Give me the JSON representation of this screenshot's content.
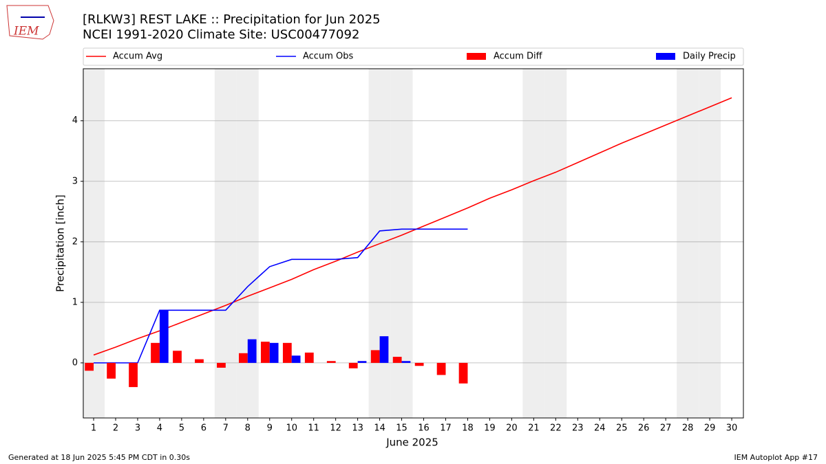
{
  "chart_data": {
    "type": "bar-line",
    "title": "[RLKW3] REST LAKE :: Precipitation for Jun 2025",
    "subtitle": "NCEI 1991-2020 Climate Site: USC00477092",
    "xlabel": "June 2025",
    "ylabel": "Precipitation [inch]",
    "logo_text": "IEM",
    "footer_left": "Generated at 18 Jun 2025 5:45 PM CDT in 0.30s",
    "footer_right": "IEM Autoplot App #17",
    "x": [
      1,
      2,
      3,
      4,
      5,
      6,
      7,
      8,
      9,
      10,
      11,
      12,
      13,
      14,
      15,
      16,
      17,
      18,
      19,
      20,
      21,
      22,
      23,
      24,
      25,
      26,
      27,
      28,
      29,
      30
    ],
    "shaded_days": [
      1,
      7,
      8,
      14,
      15,
      21,
      22,
      28,
      29
    ],
    "xlim": [
      0.53,
      30.53
    ],
    "ylim": [
      -0.91,
      4.86
    ],
    "yticks": [
      0,
      1,
      2,
      3,
      4
    ],
    "grid": true,
    "series": [
      {
        "name": "Accum Avg",
        "kind": "line",
        "color": "#ff0000",
        "values": [
          0.13,
          0.26,
          0.4,
          0.53,
          0.67,
          0.81,
          0.95,
          1.1,
          1.24,
          1.38,
          1.54,
          1.68,
          1.83,
          1.97,
          2.11,
          2.26,
          2.41,
          2.56,
          2.72,
          2.86,
          3.01,
          3.15,
          3.31,
          3.47,
          3.63,
          3.78,
          3.93,
          4.08,
          4.23,
          4.38
        ]
      },
      {
        "name": "Accum Obs",
        "kind": "line",
        "color": "#0000ff",
        "values": [
          0,
          0,
          0,
          0.87,
          0.87,
          0.87,
          0.87,
          1.26,
          1.59,
          1.71,
          1.71,
          1.71,
          1.74,
          2.18,
          2.21,
          2.21,
          2.21,
          2.21,
          null,
          null,
          null,
          null,
          null,
          null,
          null,
          null,
          null,
          null,
          null,
          null
        ]
      },
      {
        "name": "Accum Diff",
        "kind": "bar",
        "offset": "left",
        "color": "#ff0000",
        "values": [
          -0.13,
          -0.26,
          -0.4,
          0.33,
          0.2,
          0.06,
          -0.08,
          0.16,
          0.35,
          0.33,
          0.17,
          0.03,
          -0.09,
          0.21,
          0.1,
          -0.05,
          -0.2,
          -0.34,
          null,
          null,
          null,
          null,
          null,
          null,
          null,
          null,
          null,
          null,
          null,
          null
        ]
      },
      {
        "name": "Daily Precip",
        "kind": "bar",
        "offset": "right",
        "color": "#0000ff",
        "values": [
          0,
          0,
          0,
          0.87,
          0,
          0,
          0,
          0.39,
          0.33,
          0.12,
          0,
          0,
          0.03,
          0.44,
          0.03,
          0,
          0,
          0,
          null,
          null,
          null,
          null,
          null,
          null,
          null,
          null,
          null,
          null,
          null,
          null
        ]
      }
    ]
  }
}
